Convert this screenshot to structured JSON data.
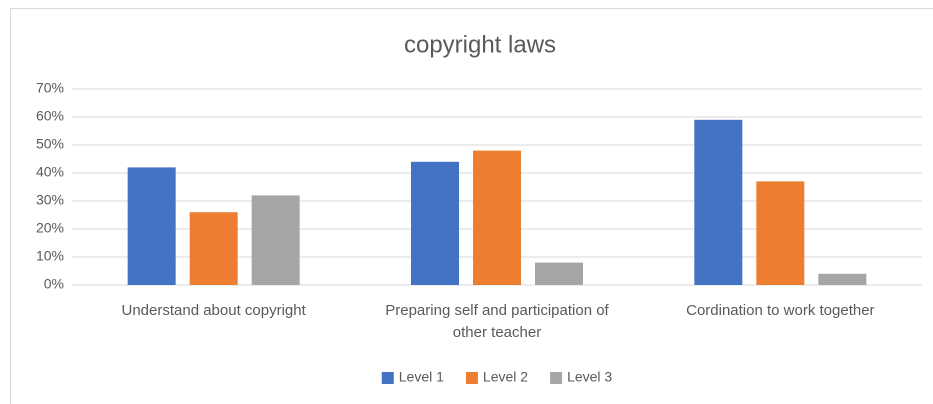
{
  "chart_data": {
    "type": "bar",
    "title": "copyright laws",
    "categories": [
      "Understand about copyright",
      "Preparing self and participation of other teacher",
      "Cordination to work together"
    ],
    "series": [
      {
        "name": "Level 1",
        "color": "#4472c4",
        "values": [
          42,
          44,
          59
        ]
      },
      {
        "name": "Level 2",
        "color": "#ed7d31",
        "values": [
          26,
          48,
          37
        ]
      },
      {
        "name": "Level 3",
        "color": "#a5a5a5",
        "values": [
          32,
          8,
          4
        ]
      }
    ],
    "ylim": [
      0,
      70
    ],
    "yticks": [
      {
        "value": 0,
        "label": "0%"
      },
      {
        "value": 10,
        "label": "10%"
      },
      {
        "value": 20,
        "label": "20%"
      },
      {
        "value": 30,
        "label": "30%"
      },
      {
        "value": 40,
        "label": "40%"
      },
      {
        "value": 50,
        "label": "50%"
      },
      {
        "value": 60,
        "label": "60%"
      },
      {
        "value": 70,
        "label": "70%"
      }
    ],
    "grid": true,
    "legend": "bottom"
  }
}
